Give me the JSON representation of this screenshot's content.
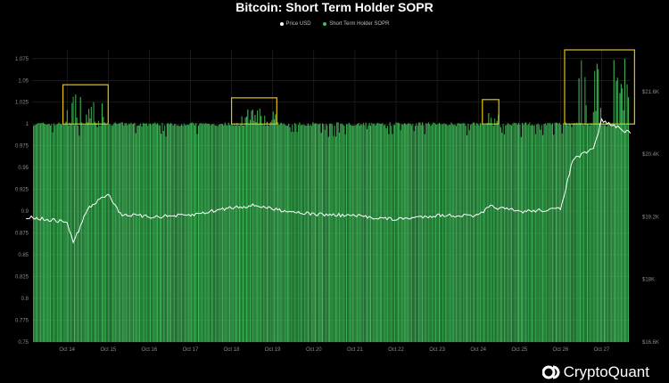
{
  "chart_data": {
    "type": "bar",
    "title": "Bitcoin: Short Term Holder SOPR",
    "legend_position": "top-center",
    "series": [
      {
        "name": "Price USD",
        "type": "line",
        "color": "#ffffff",
        "axis": "right",
        "x": [
          "Oct 13",
          "Oct 14",
          "Oct 14.15",
          "Oct 14.5",
          "Oct 15",
          "Oct 15.3",
          "Oct 16",
          "Oct 17",
          "Oct 18",
          "Oct 18.6",
          "Oct 19",
          "Oct 19.5",
          "Oct 20",
          "Oct 21",
          "Oct 22",
          "Oct 23",
          "Oct 24",
          "Oct 24.3",
          "Oct 25",
          "Oct 26",
          "Oct 26.3",
          "Oct 26.8",
          "Oct 27",
          "Oct 27.7"
        ],
        "values": [
          19200,
          19100,
          18700,
          19350,
          19650,
          19250,
          19200,
          19230,
          19380,
          19420,
          19350,
          19300,
          19250,
          19220,
          19150,
          19230,
          19220,
          19400,
          19300,
          19350,
          20300,
          20500,
          21050,
          20800
        ]
      },
      {
        "name": "Short Term Holder SOPR",
        "type": "bar",
        "color": "#3fbe5a",
        "axis": "left",
        "spikes": [
          {
            "date": "Oct 14.4",
            "value": 1.035
          },
          {
            "date": "Oct 18.6",
            "value": 1.02
          },
          {
            "date": "Oct 24.3",
            "value": 1.018
          },
          {
            "date": "Oct 27.3",
            "value": 1.075
          }
        ],
        "typical_range": [
          0.85,
          1.0
        ]
      }
    ],
    "x_ticks": [
      "Oct 14",
      "Oct 15",
      "Oct 16",
      "Oct 17",
      "Oct 18",
      "Oct 19",
      "Oct 20",
      "Oct 21",
      "Oct 22",
      "Oct 23",
      "Oct 24",
      "Oct 25",
      "Oct 26",
      "Oct 27"
    ],
    "y_left_ticks": [
      "0.75",
      "0.775",
      "0.8",
      "0.825",
      "0.85",
      "0.875",
      "0.9",
      "0.925",
      "0.95",
      "0.975",
      "1",
      "1.025",
      "1.05",
      "1.075"
    ],
    "y_left_range": [
      0.75,
      1.085
    ],
    "y_right_ticks": [
      "$16.6K",
      "$18K",
      "$19.2K",
      "$20.4K",
      "$21.6K"
    ],
    "y_right_range": [
      16800,
      22400
    ],
    "grid": true,
    "annotations": [
      "highlight box around Oct 14 SOPR spike",
      "highlight box around Oct 18-19 SOPR spike",
      "highlight box around Oct 24 SOPR spike",
      "highlight box around Oct 26-27 SOPR spike"
    ]
  },
  "brand": {
    "name": "CryptoQuant",
    "logo_icon": "cryptoquant-logo-icon"
  },
  "colors": {
    "bar": "#3fbe5a",
    "price": "#ffffff",
    "highlight": "#e3c30d",
    "grid": "#2a2a2a",
    "axis_text": "#888888"
  }
}
